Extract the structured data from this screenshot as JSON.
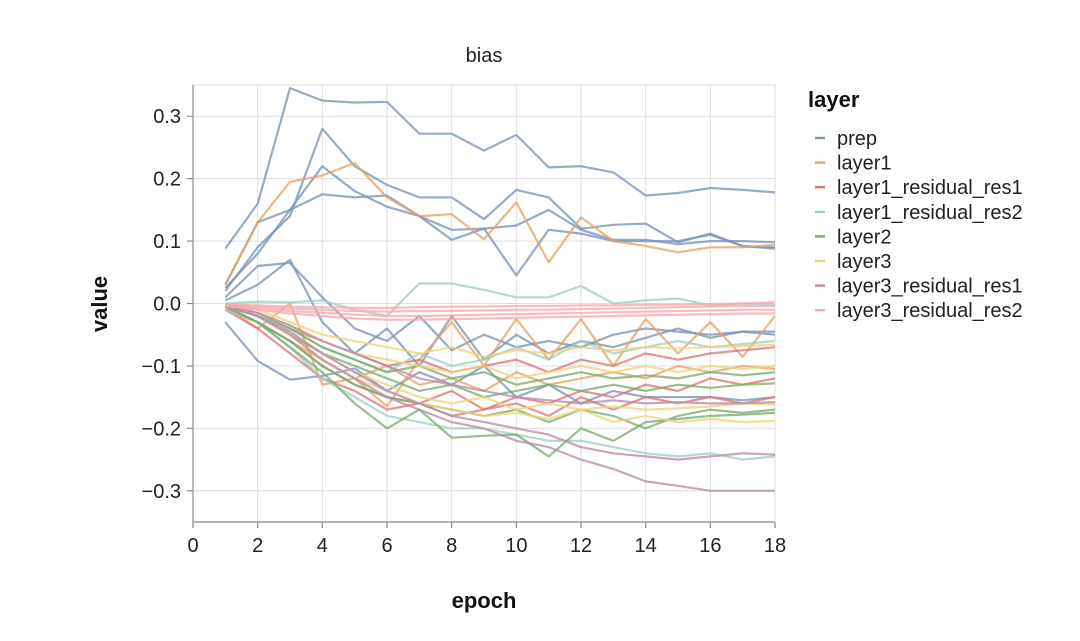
{
  "chart_data": {
    "type": "line",
    "title": "bias",
    "xlabel": "epoch",
    "ylabel": "value",
    "xlim": [
      0,
      18
    ],
    "ylim": [
      -0.35,
      0.35
    ],
    "xticks": [
      "0",
      "2",
      "4",
      "6",
      "8",
      "10",
      "12",
      "14",
      "16",
      "18"
    ],
    "yticks": [
      "0.3",
      "0.2",
      "0.1",
      "0.0",
      "−0.1",
      "−0.2",
      "−0.3"
    ],
    "legend": {
      "title": "layer",
      "position": "right",
      "entries": [
        {
          "name": "prep",
          "color": "#7893b8"
        },
        {
          "name": "layer1",
          "color": "#e9a263"
        },
        {
          "name": "layer1_residual_res1",
          "color": "#dc7771"
        },
        {
          "name": "layer1_residual_res2",
          "color": "#9fcdc8"
        },
        {
          "name": "layer2",
          "color": "#78ad6b"
        },
        {
          "name": "layer3",
          "color": "#f0d27a"
        },
        {
          "name": "layer3_residual_res1",
          "color": "#b68da9"
        },
        {
          "name": "layer3_residual_res2",
          "color": "#f6a9ae"
        }
      ]
    },
    "x": [
      1,
      2,
      3,
      4,
      5,
      6,
      7,
      8,
      9,
      10,
      11,
      12,
      13,
      14,
      15,
      16,
      17,
      18
    ],
    "series": [
      {
        "name": "prep",
        "layer": "prep",
        "values": [
          0.088,
          0.16,
          0.345,
          0.325,
          0.322,
          0.323,
          0.272,
          0.272,
          0.245,
          0.27,
          0.218,
          0.22,
          0.21,
          0.173,
          0.177,
          0.185,
          0.182,
          0.178
        ]
      },
      {
        "name": "prep",
        "layer": "prep",
        "values": [
          0.02,
          0.09,
          0.14,
          0.28,
          0.22,
          0.19,
          0.17,
          0.17,
          0.135,
          0.182,
          0.17,
          0.12,
          0.126,
          0.128,
          0.098,
          0.112,
          0.092,
          0.09
        ]
      },
      {
        "name": "prep",
        "layer": "prep",
        "values": [
          0.03,
          0.13,
          0.15,
          0.175,
          0.17,
          0.173,
          0.14,
          0.102,
          0.12,
          0.045,
          0.118,
          0.112,
          0.1,
          0.1,
          0.1,
          0.11,
          0.092,
          0.088
        ]
      },
      {
        "name": "prep",
        "layer": "prep",
        "values": [
          0.025,
          0.08,
          0.15,
          0.22,
          0.18,
          0.155,
          0.14,
          0.118,
          0.12,
          0.125,
          0.15,
          0.118,
          0.102,
          0.102,
          0.095,
          0.1,
          0.1,
          0.098
        ]
      },
      {
        "name": "prep",
        "layer": "prep",
        "values": [
          0.01,
          0.06,
          0.065,
          0.01,
          -0.04,
          -0.06,
          -0.02,
          -0.075,
          -0.05,
          -0.07,
          -0.06,
          -0.07,
          -0.05,
          -0.04,
          -0.045,
          -0.05,
          -0.045,
          -0.045
        ]
      },
      {
        "name": "prep",
        "layer": "prep",
        "values": [
          0.005,
          0.03,
          0.07,
          -0.03,
          -0.08,
          -0.04,
          -0.1,
          -0.02,
          -0.09,
          -0.05,
          -0.08,
          -0.06,
          -0.07,
          -0.055,
          -0.04,
          -0.055,
          -0.045,
          -0.05
        ]
      },
      {
        "name": "prep",
        "layer": "prep",
        "values": [
          -0.03,
          -0.092,
          -0.122,
          -0.116,
          -0.104,
          -0.14,
          -0.11,
          -0.13,
          -0.1,
          -0.15,
          -0.13,
          -0.16,
          -0.14,
          -0.15,
          -0.15,
          -0.15,
          -0.155,
          -0.15
        ]
      },
      {
        "name": "layer1",
        "layer": "layer1",
        "values": [
          0.03,
          0.13,
          0.195,
          0.205,
          0.225,
          0.17,
          0.14,
          0.143,
          0.103,
          0.162,
          0.066,
          0.138,
          0.1,
          0.092,
          0.082,
          0.09,
          0.09,
          0.094
        ]
      },
      {
        "name": "layer1",
        "layer": "layer1",
        "values": [
          -0.005,
          -0.04,
          0.0,
          -0.13,
          -0.12,
          -0.165,
          -0.09,
          -0.03,
          -0.1,
          -0.025,
          -0.09,
          -0.025,
          -0.1,
          -0.025,
          -0.08,
          -0.03,
          -0.085,
          -0.02
        ]
      },
      {
        "name": "layer1",
        "layer": "layer1",
        "values": [
          -0.01,
          -0.03,
          -0.06,
          -0.09,
          -0.12,
          -0.1,
          -0.13,
          -0.12,
          -0.14,
          -0.11,
          -0.13,
          -0.12,
          -0.11,
          -0.12,
          -0.1,
          -0.11,
          -0.1,
          -0.105
        ]
      },
      {
        "name": "layer1_residual_res1",
        "layer": "layer1_residual_res1",
        "values": [
          -0.005,
          -0.03,
          -0.06,
          -0.1,
          -0.13,
          -0.15,
          -0.16,
          -0.14,
          -0.17,
          -0.15,
          -0.16,
          -0.14,
          -0.15,
          -0.13,
          -0.14,
          -0.12,
          -0.13,
          -0.12
        ]
      },
      {
        "name": "layer1_residual_res1",
        "layer": "layer1_residual_res1",
        "values": [
          -0.003,
          -0.02,
          -0.04,
          -0.06,
          -0.08,
          -0.1,
          -0.09,
          -0.11,
          -0.1,
          -0.09,
          -0.11,
          -0.09,
          -0.1,
          -0.08,
          -0.09,
          -0.08,
          -0.075,
          -0.07
        ]
      },
      {
        "name": "layer1_residual_res1",
        "layer": "layer1_residual_res1",
        "values": [
          -0.01,
          -0.04,
          -0.08,
          -0.12,
          -0.14,
          -0.17,
          -0.16,
          -0.18,
          -0.17,
          -0.16,
          -0.18,
          -0.15,
          -0.17,
          -0.15,
          -0.16,
          -0.15,
          -0.16,
          -0.15
        ]
      },
      {
        "name": "layer1_residual_res2",
        "layer": "layer1_residual_res2",
        "values": [
          0.0,
          0.003,
          0.002,
          0.005,
          -0.01,
          -0.02,
          0.032,
          0.032,
          0.022,
          0.01,
          0.01,
          0.028,
          0.0,
          0.005,
          0.008,
          -0.003,
          0.0,
          -0.002
        ]
      },
      {
        "name": "layer1_residual_res2",
        "layer": "layer1_residual_res2",
        "values": [
          -0.01,
          -0.03,
          -0.07,
          -0.12,
          -0.15,
          -0.18,
          -0.19,
          -0.2,
          -0.2,
          -0.21,
          -0.22,
          -0.22,
          -0.23,
          -0.24,
          -0.245,
          -0.24,
          -0.25,
          -0.245
        ]
      },
      {
        "name": "layer1_residual_res2",
        "layer": "layer1_residual_res2",
        "values": [
          -0.005,
          -0.02,
          -0.04,
          -0.07,
          -0.09,
          -0.11,
          -0.08,
          -0.1,
          -0.09,
          -0.07,
          -0.09,
          -0.06,
          -0.08,
          -0.07,
          -0.06,
          -0.07,
          -0.065,
          -0.06
        ]
      },
      {
        "name": "layer2",
        "layer": "layer2",
        "values": [
          -0.005,
          -0.03,
          -0.07,
          -0.11,
          -0.16,
          -0.2,
          -0.17,
          -0.215,
          -0.212,
          -0.21,
          -0.245,
          -0.2,
          -0.22,
          -0.19,
          -0.185,
          -0.18,
          -0.178,
          -0.175
        ]
      },
      {
        "name": "layer2",
        "layer": "layer2",
        "values": [
          -0.003,
          -0.02,
          -0.05,
          -0.08,
          -0.1,
          -0.12,
          -0.14,
          -0.13,
          -0.15,
          -0.14,
          -0.13,
          -0.14,
          -0.13,
          -0.14,
          -0.13,
          -0.135,
          -0.13,
          -0.128
        ]
      },
      {
        "name": "layer2",
        "layer": "layer2",
        "values": [
          -0.005,
          -0.03,
          -0.06,
          -0.1,
          -0.13,
          -0.15,
          -0.16,
          -0.17,
          -0.18,
          -0.17,
          -0.19,
          -0.17,
          -0.18,
          -0.2,
          -0.18,
          -0.17,
          -0.175,
          -0.17
        ]
      },
      {
        "name": "layer2",
        "layer": "layer2",
        "values": [
          -0.002,
          -0.015,
          -0.04,
          -0.07,
          -0.09,
          -0.11,
          -0.1,
          -0.12,
          -0.11,
          -0.13,
          -0.12,
          -0.11,
          -0.12,
          -0.115,
          -0.12,
          -0.11,
          -0.115,
          -0.11
        ]
      },
      {
        "name": "layer3",
        "layer": "layer3",
        "values": [
          -0.005,
          -0.02,
          -0.05,
          -0.09,
          -0.12,
          -0.14,
          -0.16,
          -0.17,
          -0.18,
          -0.175,
          -0.185,
          -0.17,
          -0.19,
          -0.18,
          -0.19,
          -0.185,
          -0.19,
          -0.188
        ]
      },
      {
        "name": "layer3",
        "layer": "layer3",
        "values": [
          -0.003,
          -0.015,
          -0.035,
          -0.06,
          -0.08,
          -0.09,
          -0.1,
          -0.11,
          -0.1,
          -0.12,
          -0.11,
          -0.1,
          -0.11,
          -0.1,
          -0.11,
          -0.1,
          -0.105,
          -0.1
        ]
      },
      {
        "name": "layer3",
        "layer": "layer3",
        "values": [
          -0.002,
          -0.01,
          -0.03,
          -0.05,
          -0.06,
          -0.07,
          -0.08,
          -0.07,
          -0.085,
          -0.075,
          -0.08,
          -0.07,
          -0.075,
          -0.07,
          -0.072,
          -0.07,
          -0.068,
          -0.066
        ]
      },
      {
        "name": "layer3",
        "layer": "layer3",
        "values": [
          -0.004,
          -0.02,
          -0.045,
          -0.08,
          -0.11,
          -0.13,
          -0.15,
          -0.16,
          -0.15,
          -0.17,
          -0.16,
          -0.17,
          -0.165,
          -0.17,
          -0.168,
          -0.165,
          -0.16,
          -0.162
        ]
      },
      {
        "name": "layer3_residual_res1",
        "layer": "layer3_residual_res1",
        "values": [
          -0.005,
          -0.02,
          -0.05,
          -0.09,
          -0.12,
          -0.15,
          -0.17,
          -0.19,
          -0.2,
          -0.22,
          -0.23,
          -0.25,
          -0.265,
          -0.285,
          -0.292,
          -0.3,
          -0.3,
          -0.3
        ]
      },
      {
        "name": "layer3_residual_res1",
        "layer": "layer3_residual_res1",
        "values": [
          -0.004,
          -0.02,
          -0.045,
          -0.08,
          -0.11,
          -0.14,
          -0.16,
          -0.18,
          -0.19,
          -0.2,
          -0.21,
          -0.23,
          -0.24,
          -0.245,
          -0.25,
          -0.245,
          -0.24,
          -0.242
        ]
      },
      {
        "name": "layer3_residual_res1",
        "layer": "layer3_residual_res1",
        "values": [
          -0.003,
          -0.015,
          -0.035,
          -0.06,
          -0.08,
          -0.1,
          -0.12,
          -0.13,
          -0.14,
          -0.15,
          -0.155,
          -0.16,
          -0.155,
          -0.16,
          -0.158,
          -0.16,
          -0.16,
          -0.158
        ]
      },
      {
        "name": "layer3_residual_res2",
        "layer": "layer3_residual_res2",
        "values": [
          -0.002,
          -0.005,
          -0.008,
          -0.01,
          -0.012,
          -0.013,
          -0.012,
          -0.012,
          -0.011,
          -0.01,
          -0.01,
          -0.009,
          -0.008,
          -0.007,
          -0.006,
          -0.005,
          -0.004,
          -0.004
        ]
      },
      {
        "name": "layer3_residual_res2",
        "layer": "layer3_residual_res2",
        "values": [
          -0.003,
          -0.008,
          -0.012,
          -0.015,
          -0.018,
          -0.02,
          -0.02,
          -0.019,
          -0.018,
          -0.017,
          -0.016,
          -0.015,
          -0.014,
          -0.013,
          -0.012,
          -0.011,
          -0.01,
          -0.01
        ]
      },
      {
        "name": "layer3_residual_res2",
        "layer": "layer3_residual_res2",
        "values": [
          -0.001,
          -0.003,
          -0.005,
          -0.006,
          -0.007,
          -0.007,
          -0.006,
          -0.005,
          -0.005,
          -0.004,
          -0.004,
          -0.003,
          -0.003,
          -0.002,
          -0.002,
          -0.001,
          0.0,
          0.002
        ]
      },
      {
        "name": "layer3_residual_res2",
        "layer": "layer3_residual_res2",
        "values": [
          -0.004,
          -0.01,
          -0.016,
          -0.02,
          -0.024,
          -0.026,
          -0.026,
          -0.025,
          -0.024,
          -0.023,
          -0.022,
          -0.021,
          -0.02,
          -0.019,
          -0.018,
          -0.017,
          -0.016,
          -0.016
        ]
      }
    ]
  }
}
